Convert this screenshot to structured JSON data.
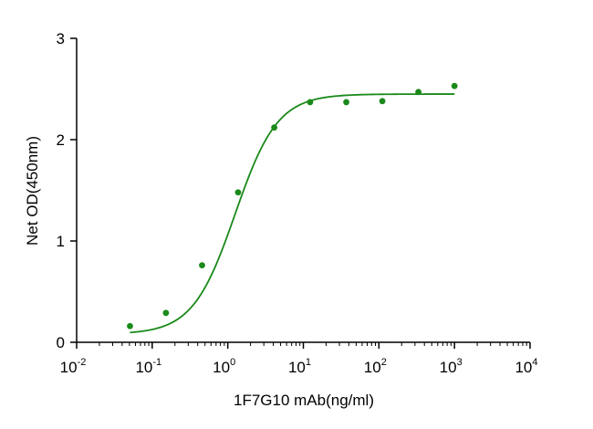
{
  "chart_data": {
    "type": "scatter",
    "xlabel": "1F7G10 mAb(ng/ml)",
    "ylabel": "Net OD(450nm)",
    "x_scale": "log10",
    "xlim": [
      0.01,
      10000
    ],
    "ylim": [
      0,
      3
    ],
    "x_ticks": [
      {
        "base": "10",
        "exp": "-2",
        "value": 0.01
      },
      {
        "base": "10",
        "exp": "-1",
        "value": 0.1
      },
      {
        "base": "10",
        "exp": "0",
        "value": 1
      },
      {
        "base": "10",
        "exp": "1",
        "value": 10
      },
      {
        "base": "10",
        "exp": "2",
        "value": 100
      },
      {
        "base": "10",
        "exp": "3",
        "value": 1000
      },
      {
        "base": "10",
        "exp": "4",
        "value": 10000
      }
    ],
    "y_ticks": [
      "0",
      "1",
      "2",
      "3"
    ],
    "grid": false,
    "color": "#1a8a1a",
    "points": [
      {
        "x": 0.0508,
        "y": 0.16
      },
      {
        "x": 0.152,
        "y": 0.29
      },
      {
        "x": 0.457,
        "y": 0.76
      },
      {
        "x": 1.37,
        "y": 1.48
      },
      {
        "x": 4.12,
        "y": 2.12
      },
      {
        "x": 12.3,
        "y": 2.37
      },
      {
        "x": 37.0,
        "y": 2.37
      },
      {
        "x": 111,
        "y": 2.38
      },
      {
        "x": 333,
        "y": 2.47
      },
      {
        "x": 1000,
        "y": 2.53
      }
    ],
    "fit_curve": {
      "bottom": 0.08,
      "top": 2.45,
      "ec50": 1.25,
      "hill": 1.55,
      "x_range": [
        0.0508,
        1000
      ]
    }
  }
}
